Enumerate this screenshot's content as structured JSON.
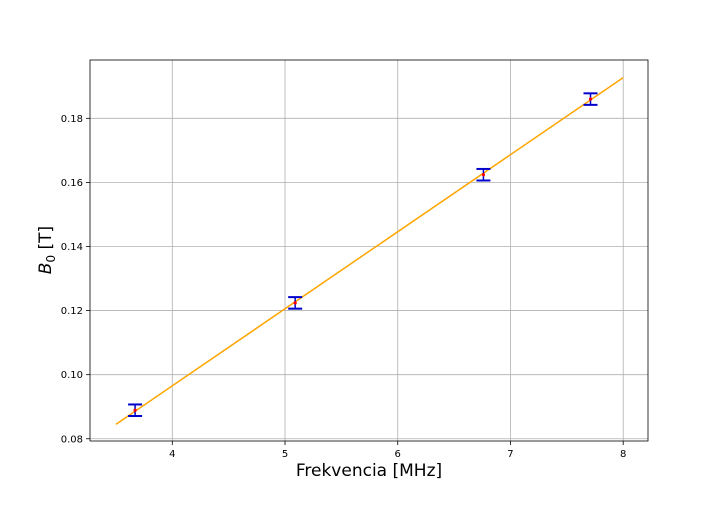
{
  "chart_data": {
    "type": "scatter",
    "xlabel": "Frekvencia [MHz]",
    "ylabel_symbol": "B",
    "ylabel_subscript": "0",
    "ylabel_unit": " [T]",
    "xlim": [
      3.27,
      8.22
    ],
    "ylim": [
      0.0793,
      0.1982
    ],
    "x_ticks": [
      4,
      5,
      6,
      7,
      8
    ],
    "x_tick_labels": [
      "4",
      "5",
      "6",
      "7",
      "8"
    ],
    "y_ticks": [
      0.08,
      0.1,
      0.12,
      0.14,
      0.16,
      0.18
    ],
    "y_tick_labels": [
      "0.08",
      "0.10",
      "0.12",
      "0.14",
      "0.16",
      "0.18"
    ],
    "grid": true,
    "measurements": {
      "x": [
        3.67,
        5.09,
        6.76,
        7.71
      ],
      "y": [
        0.0889,
        0.1224,
        0.1624,
        0.186
      ],
      "yerr": [
        0.0018,
        0.0018,
        0.0018,
        0.0018
      ]
    },
    "fit_line": {
      "x": [
        3.5,
        8.0
      ],
      "y": [
        0.0845,
        0.1927
      ]
    },
    "colors": {
      "fit": "#FFA500",
      "errorbar": "#0000CC",
      "marker": "#FF0000",
      "grid": "#b0b0b0",
      "axes": "#000000"
    }
  }
}
